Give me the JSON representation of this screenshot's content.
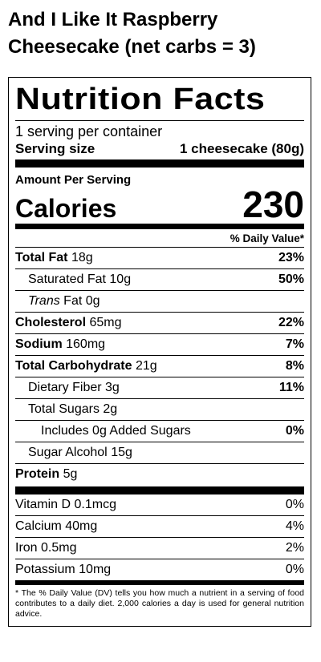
{
  "product": {
    "title_line1": "And I Like It Raspberry",
    "title_line2": "Cheesecake (net carbs = 3)"
  },
  "label": {
    "heading": "Nutrition Facts",
    "servings": "1 serving per container",
    "serving_size_label": "Serving size",
    "serving_size_value": "1 cheesecake (80g)",
    "amount_per_serving": "Amount Per Serving",
    "calories_label": "Calories",
    "calories_value": "230",
    "dv_header": "% Daily Value*",
    "nutrients": [
      {
        "name": "Total Fat",
        "amount": "18g",
        "dv": "23%"
      },
      {
        "name": "Saturated Fat",
        "amount": "10g",
        "dv": "50%"
      },
      {
        "name": "Trans",
        "amount": "Fat 0g",
        "dv": ""
      },
      {
        "name": "Cholesterol",
        "amount": "65mg",
        "dv": "22%"
      },
      {
        "name": "Sodium",
        "amount": "160mg",
        "dv": "7%"
      },
      {
        "name": "Total Carbohydrate",
        "amount": "21g",
        "dv": "8%"
      },
      {
        "name": "Dietary Fiber",
        "amount": "3g",
        "dv": "11%"
      },
      {
        "name": "Total Sugars",
        "amount": "2g",
        "dv": ""
      },
      {
        "name": "Includes 0g Added Sugars",
        "amount": "",
        "dv": "0%"
      },
      {
        "name": "Sugar Alcohol",
        "amount": "15g",
        "dv": ""
      },
      {
        "name": "Protein",
        "amount": "5g",
        "dv": ""
      }
    ],
    "vitamins": [
      {
        "name": "Vitamin D 0.1mcg",
        "dv": "0%"
      },
      {
        "name": "Calcium 40mg",
        "dv": "4%"
      },
      {
        "name": "Iron 0.5mg",
        "dv": "2%"
      },
      {
        "name": "Potassium 10mg",
        "dv": "0%"
      }
    ],
    "footnote": "* The % Daily Value (DV) tells you how much a nutrient in a serving of food contributes to a daily diet. 2,000 calories a day is used for general nutrition advice."
  }
}
